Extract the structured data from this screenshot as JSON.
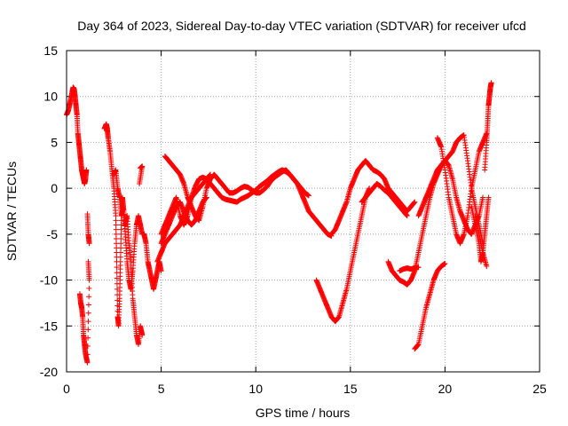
{
  "chart_data": {
    "type": "scatter",
    "title": "Day 364 of 2023, Sidereal Day-to-day VTEC variation (SDTVAR) for receiver ufcd",
    "xlabel": "GPS time / hours",
    "ylabel": "SDTVAR / TECUs",
    "xlim": [
      0,
      25
    ],
    "ylim": [
      -20,
      15
    ],
    "xticks": [
      0,
      5,
      10,
      15,
      20,
      25
    ],
    "yticks": [
      -20,
      -15,
      -10,
      -5,
      0,
      5,
      10,
      15
    ],
    "grid": true,
    "marker": "+",
    "color": "#ff0000",
    "series": [
      {
        "name": "s1",
        "x": [
          0.0,
          0.1,
          0.2,
          0.3,
          0.35,
          0.4,
          0.45,
          0.5,
          0.55,
          0.6,
          0.65,
          0.7,
          0.75,
          0.8,
          0.85,
          0.9,
          0.95,
          1.0,
          1.05
        ],
        "y": [
          8,
          8.5,
          9.5,
          10.5,
          11,
          10.8,
          10,
          9,
          8,
          6,
          5,
          4,
          3,
          2,
          1.5,
          1,
          0.5,
          1,
          2
        ]
      },
      {
        "name": "s2",
        "x": [
          0.7,
          0.75,
          0.8,
          0.85,
          0.9,
          0.95,
          1.0,
          1.1,
          1.2,
          1.15
        ],
        "y": [
          -11.5,
          -12.5,
          -13,
          -14,
          -16,
          -17,
          -18,
          -19,
          -10,
          -8
        ]
      },
      {
        "name": "s3",
        "x": [
          1.1,
          1.15,
          1.2
        ],
        "y": [
          -2.8,
          -5,
          -6
        ]
      },
      {
        "name": "s4",
        "x": [
          2.0,
          2.1,
          2.15,
          2.2,
          2.3,
          2.4,
          2.5,
          2.6,
          2.65,
          2.7,
          2.75,
          2.8,
          2.85,
          2.9,
          2.95,
          3.0,
          3.1,
          3.2,
          3.3,
          3.4,
          3.5,
          3.6,
          3.7,
          3.8,
          3.9,
          4.0,
          4.1,
          4.2,
          4.3,
          4.4,
          4.5,
          4.6,
          4.7,
          4.8,
          4.9,
          5.0
        ],
        "y": [
          6.5,
          7,
          6.5,
          5.5,
          4,
          2,
          0,
          -3,
          -8,
          -14,
          -15,
          -12,
          -8,
          -3,
          -1,
          -2,
          -5,
          -8,
          -10,
          -11,
          -9,
          -6,
          -4,
          -3,
          -4,
          -5,
          -5,
          -6,
          -8,
          -9,
          -10,
          -11,
          -10,
          -9,
          -8,
          -9
        ]
      },
      {
        "name": "s5",
        "x": [
          2.5,
          2.6,
          2.7,
          2.8,
          2.9,
          3.0,
          3.1,
          3.2,
          3.3,
          3.4,
          3.5,
          3.6,
          3.7,
          3.8,
          3.9,
          4.0
        ],
        "y": [
          1.5,
          2,
          0,
          -1,
          -3,
          -2,
          -4,
          -3,
          -6,
          -8,
          -12,
          -14,
          -16,
          -17,
          -15,
          -16
        ]
      },
      {
        "name": "s6",
        "x": [
          3.9,
          4.0,
          3.85
        ],
        "y": [
          2.2,
          2.4,
          0.5
        ]
      },
      {
        "name": "s7",
        "x": [
          5.0,
          5.2,
          5.4,
          5.6,
          5.8,
          6.0,
          6.2,
          6.4,
          6.6,
          6.8,
          7.0,
          7.2,
          7.4,
          7.6,
          7.8,
          8.0,
          8.2,
          8.4,
          8.6,
          8.8,
          9.0,
          9.2,
          9.4,
          9.6,
          9.8,
          10.0,
          10.2,
          10.4,
          10.6,
          10.8,
          11.0,
          11.2,
          11.4,
          11.6,
          11.8,
          12.0,
          12.2,
          12.4,
          12.6,
          12.8,
          13.0,
          13.2,
          13.4,
          13.6,
          13.8,
          14.0
        ],
        "y": [
          -5,
          -4,
          -3,
          -2,
          -1,
          -3,
          -4,
          -3,
          -1,
          0.2,
          1,
          1.2,
          1,
          0.5,
          0,
          -0.5,
          -1,
          -1.2,
          -1.3,
          -1.4,
          -1.5,
          -1.2,
          -1,
          -0.8,
          -0.5,
          -0.2,
          0.2,
          0.5,
          0.8,
          1.2,
          1.5,
          1.8,
          2,
          1.8,
          1.5,
          1,
          0.5,
          -0.5,
          -1.5,
          -2.5,
          -3,
          -3.5,
          -4,
          -4.5,
          -5,
          -5.2
        ]
      },
      {
        "name": "s8",
        "x": [
          5.2,
          5.4,
          5.6,
          5.8,
          6.0,
          6.2,
          6.4,
          6.6,
          6.8,
          7.0,
          7.2,
          7.4,
          7.6,
          7.8,
          8.0,
          8.2,
          8.4,
          8.6,
          8.8,
          9.0,
          9.2,
          9.4,
          9.6,
          9.8,
          10.0,
          10.2,
          10.4,
          10.6,
          10.8,
          11.0,
          11.2,
          11.4,
          11.6,
          11.8,
          12.0,
          12.2,
          12.4,
          12.6,
          12.8
        ],
        "y": [
          3.5,
          3,
          2.5,
          2,
          1.5,
          0.5,
          -1,
          -2,
          -3,
          -3.5,
          -2,
          0,
          1,
          1.5,
          1,
          0.5,
          0,
          -0.5,
          -0.5,
          -0.3,
          0,
          0.2,
          0.1,
          -0.2,
          -0.5,
          -0.5,
          -0.2,
          0.2,
          0.8,
          1.2,
          1.5,
          1.8,
          2,
          1.5,
          1,
          0.5,
          0,
          -0.5,
          -0.8
        ]
      },
      {
        "name": "s9",
        "x": [
          5.0,
          5.2,
          5.4,
          5.6,
          5.8,
          6.0,
          6.2,
          6.4,
          6.6,
          6.8,
          7.0,
          7.2,
          7.4
        ],
        "y": [
          -6,
          -5,
          -4,
          -3,
          -2,
          -1.5,
          -2.5,
          -3.5,
          -4,
          -3.5,
          -2.5,
          -1.5,
          -1
        ]
      },
      {
        "name": "s10",
        "x": [
          4.8,
          5.0,
          5.2,
          5.4,
          5.6,
          5.8,
          6.0,
          6.2,
          6.4,
          6.6,
          6.8,
          7.0,
          7.2,
          7.4,
          7.6
        ],
        "y": [
          -8,
          -7,
          -6,
          -5.5,
          -5,
          -4.5,
          -4,
          -3,
          -2,
          -1,
          -0.5,
          0,
          0.5,
          1,
          1.5
        ]
      },
      {
        "name": "s11",
        "x": [
          13.2,
          13.4,
          13.6,
          13.8,
          14.0,
          14.2,
          14.4,
          14.6,
          14.8,
          15.0,
          15.2,
          15.4,
          15.6,
          15.8,
          16.0
        ],
        "y": [
          -10,
          -11,
          -12,
          -13,
          -14,
          -14.5,
          -14,
          -12.5,
          -11,
          -9,
          -7,
          -5,
          -3,
          -1,
          0
        ]
      },
      {
        "name": "s12",
        "x": [
          14.0,
          14.2,
          14.4,
          14.6,
          14.8,
          15.0,
          15.2,
          15.4,
          15.6,
          15.8,
          16.0,
          16.2,
          16.4,
          16.6,
          16.8,
          17.0,
          17.2,
          17.4,
          17.6,
          17.8,
          18.0,
          18.2,
          18.4
        ],
        "y": [
          -5,
          -4.5,
          -3.5,
          -2.5,
          -1.5,
          0,
          1,
          2,
          2.5,
          3,
          2.5,
          2,
          1.8,
          1.5,
          1,
          0,
          -0.5,
          -1,
          -1.5,
          -2,
          -2.5,
          -2,
          -1.5
        ]
      },
      {
        "name": "s13",
        "x": [
          15.6,
          15.8,
          16.0,
          16.2,
          16.4,
          16.6,
          16.8,
          17.0,
          17.2,
          17.4,
          17.6,
          17.8,
          18.0
        ],
        "y": [
          -1.5,
          -1,
          -0.5,
          0,
          0.5,
          0.2,
          -0.2,
          -0.5,
          -1,
          -1.5,
          -2,
          -2.5,
          -3
        ]
      },
      {
        "name": "s14",
        "x": [
          17.0,
          17.2,
          17.4,
          17.6,
          17.8,
          18.0,
          18.2,
          18.4,
          18.6,
          18.8,
          19.0,
          19.2,
          19.4,
          19.6,
          19.8,
          20.0,
          20.2,
          20.4,
          20.6,
          20.8,
          21.0,
          21.2,
          21.4,
          21.6,
          21.8,
          22.0
        ],
        "y": [
          -8,
          -9,
          -9.5,
          -10,
          -10.2,
          -10.5,
          -10,
          -9,
          -7,
          -5,
          -3,
          -1,
          0.5,
          1.5,
          2.5,
          3,
          2.5,
          1,
          -1,
          -2.5,
          -3.5,
          -4.5,
          -5,
          -4,
          -3,
          -1
        ]
      },
      {
        "name": "s15",
        "x": [
          17.6,
          17.8,
          18.0,
          18.2,
          18.4,
          18.6
        ],
        "y": [
          -9,
          -8.8,
          -8.7,
          -8.8,
          -8.7,
          -8.6
        ]
      },
      {
        "name": "s16",
        "x": [
          18.4,
          18.6,
          18.8,
          19.0,
          19.2,
          19.4,
          19.6,
          19.8,
          20.0
        ],
        "y": [
          -17.5,
          -17,
          -15,
          -13,
          -11.5,
          -10,
          -9,
          -8.5,
          -8.2
        ]
      },
      {
        "name": "s17",
        "x": [
          18.6,
          18.8,
          19.0,
          19.2,
          19.4,
          19.6,
          19.8,
          20.0,
          20.2,
          20.4,
          20.6,
          20.8,
          21.0,
          21.2,
          21.4,
          21.6,
          21.8,
          22.0
        ],
        "y": [
          -3,
          -2,
          -1,
          0,
          1,
          2,
          2.5,
          3,
          3.5,
          4,
          5,
          5.5,
          5.8,
          3,
          0,
          -2,
          -4,
          -6
        ]
      },
      {
        "name": "s18",
        "x": [
          19.6,
          19.8,
          20.0,
          20.2,
          20.4,
          20.6,
          20.8,
          21.0,
          21.2,
          21.4,
          21.6,
          21.8,
          22.0,
          22.2
        ],
        "y": [
          5.5,
          4.5,
          2,
          -1,
          -3,
          -5,
          -6,
          -5,
          -3,
          0,
          2,
          4,
          5,
          6
        ]
      },
      {
        "name": "s19",
        "x": [
          21.4,
          21.6,
          21.8,
          21.9,
          22.0,
          22.1,
          22.2,
          22.3
        ],
        "y": [
          -2,
          -4,
          -6,
          -8,
          -7,
          -5,
          -3,
          -1
        ]
      },
      {
        "name": "s20",
        "x": [
          22.1,
          22.2,
          22.25,
          22.3,
          22.35,
          22.4,
          22.45
        ],
        "y": [
          2,
          5,
          7,
          9,
          10,
          11,
          11.5
        ]
      },
      {
        "name": "s21",
        "x": [
          21.6,
          21.8,
          22.0,
          22.2
        ],
        "y": [
          -3,
          -5,
          -7,
          -8.5
        ]
      }
    ]
  }
}
